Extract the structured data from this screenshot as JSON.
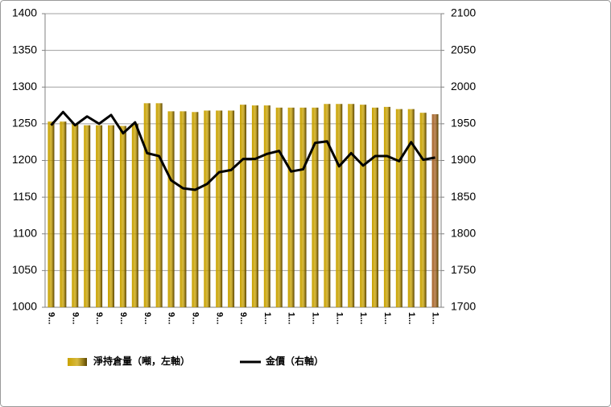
{
  "chart_data": {
    "type": "bar_line",
    "categories": [
      "9...",
      null,
      "9...",
      null,
      "9...",
      null,
      "9...",
      null,
      "9...",
      null,
      "9...",
      null,
      "9...",
      null,
      "9...",
      null,
      "9...",
      null,
      "1...",
      null,
      "1...",
      null,
      "1...",
      null,
      "1...",
      null,
      "1...",
      null,
      "1...",
      null,
      "1...",
      null,
      "1..."
    ],
    "series": [
      {
        "name": "淨持倉量（噸，左軸）",
        "type": "bar",
        "color": "#c9a200",
        "last_color": "#a8652a",
        "values": [
          1253,
          1253,
          1250,
          1248,
          1248,
          1248,
          1247,
          1250,
          1278,
          1278,
          1267,
          1267,
          1266,
          1268,
          1268,
          1268,
          1276,
          1275,
          1275,
          1272,
          1272,
          1272,
          1272,
          1277,
          1277,
          1277,
          1276,
          1272,
          1273,
          1270,
          1270,
          1265,
          1263
        ]
      },
      {
        "name": "金價（右軸）",
        "type": "line",
        "axis": "y2",
        "color": "#000000",
        "values": [
          1948,
          1966,
          1948,
          1960,
          1950,
          1962,
          1937,
          1952,
          1910,
          1906,
          1873,
          1862,
          1860,
          1868,
          1884,
          1887,
          1902,
          1902,
          1909,
          1913,
          1885,
          1888,
          1924,
          1926,
          1892,
          1910,
          1893,
          1906,
          1906,
          1899,
          1925,
          1901,
          1904
        ]
      }
    ],
    "ylim": [
      1000,
      1400
    ],
    "yticks": [
      1000,
      1050,
      1100,
      1150,
      1200,
      1250,
      1300,
      1350,
      1400
    ],
    "y2lim": [
      1700,
      2100
    ],
    "y2ticks": [
      1700,
      1750,
      1800,
      1850,
      1900,
      1950,
      2000,
      2050,
      2100
    ],
    "grid": true
  }
}
